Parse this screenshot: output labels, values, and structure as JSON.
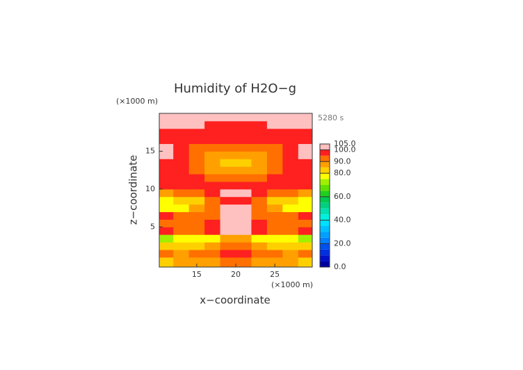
{
  "chart_data": {
    "type": "contour",
    "title": "Humidity of H2O−g",
    "time_label": "5280 s",
    "x_label": "x−coordinate",
    "y_label": "z−coordinate",
    "x_unit": "(×1000 m)",
    "y_unit": "(×1000 m)",
    "xlim": [
      10.2,
      29.8
    ],
    "ylim": [
      -0.3,
      20
    ],
    "xticks": [
      15,
      20,
      25
    ],
    "yticks": [
      5,
      10,
      15
    ],
    "x": [
      11,
      13,
      15,
      17,
      19,
      21,
      23,
      25,
      27,
      29
    ],
    "y": [
      0.5,
      1.5,
      2.5,
      3.5,
      4.5,
      5.5,
      6.5,
      7.5,
      8.5,
      9.5,
      10.5,
      11.5,
      12.5,
      13.5,
      14.5,
      15.5,
      16.5,
      17.5,
      18.5,
      19.5
    ],
    "z": [
      [
        84,
        86,
        85,
        87,
        92,
        92,
        87,
        85,
        86,
        84
      ],
      [
        90,
        88,
        92,
        93,
        96,
        96,
        93,
        92,
        88,
        90
      ],
      [
        82,
        80,
        83,
        85,
        90,
        90,
        85,
        83,
        80,
        82
      ],
      [
        72,
        77,
        78,
        78,
        86,
        86,
        78,
        78,
        77,
        72
      ],
      [
        96,
        92,
        94,
        97,
        101,
        101,
        97,
        94,
        92,
        96
      ],
      [
        91,
        93,
        92,
        96,
        101,
        101,
        96,
        92,
        93,
        91
      ],
      [
        95,
        90,
        92,
        94,
        101,
        101,
        94,
        92,
        90,
        95
      ],
      [
        78,
        79,
        85,
        92,
        101,
        101,
        92,
        85,
        79,
        78
      ],
      [
        77,
        80,
        84,
        93,
        97,
        97,
        93,
        84,
        80,
        77
      ],
      [
        88,
        90,
        92,
        95,
        101,
        101,
        95,
        92,
        90,
        88
      ],
      [
        97,
        98,
        97,
        96,
        97,
        97,
        96,
        97,
        98,
        97
      ],
      [
        98,
        97,
        95,
        92,
        91,
        91,
        92,
        95,
        97,
        98
      ],
      [
        98,
        96,
        92,
        89,
        86,
        86,
        89,
        92,
        96,
        98
      ],
      [
        97,
        95,
        90,
        87,
        84,
        84,
        87,
        90,
        95,
        97
      ],
      [
        101,
        96,
        92,
        89,
        88,
        88,
        89,
        92,
        96,
        101
      ],
      [
        101,
        97,
        94,
        91,
        91,
        91,
        91,
        94,
        97,
        101
      ],
      [
        98,
        98,
        97,
        96,
        96,
        96,
        96,
        97,
        98,
        98
      ],
      [
        98,
        98,
        98,
        98,
        98,
        98,
        98,
        98,
        98,
        98
      ],
      [
        102,
        102,
        101,
        99,
        98,
        98,
        99,
        101,
        102,
        102
      ],
      [
        102,
        102,
        102,
        101,
        101,
        101,
        101,
        102,
        102,
        102
      ]
    ],
    "colorbar": {
      "levels": [
        0,
        5,
        10,
        15,
        20,
        25,
        30,
        35,
        40,
        45,
        50,
        55,
        60,
        65,
        70,
        75,
        80,
        85,
        90,
        95,
        100,
        105
      ],
      "colors": [
        "#0000a0",
        "#0010c8",
        "#0030e0",
        "#0050f0",
        "#0080ff",
        "#00a0ff",
        "#00c0ff",
        "#00e0ff",
        "#00f0e0",
        "#00e0b0",
        "#00d080",
        "#00c850",
        "#20d020",
        "#60e000",
        "#a0f000",
        "#ffff00",
        "#ffd000",
        "#ffa000",
        "#ff7000",
        "#ff2020",
        "#ffc0c0"
      ],
      "ticks": [
        {
          "value": 0,
          "label": "0.0"
        },
        {
          "value": 20,
          "label": "20.0"
        },
        {
          "value": 40,
          "label": "40.0"
        },
        {
          "value": 60,
          "label": "60.0"
        },
        {
          "value": 80,
          "label": "80.0"
        },
        {
          "value": 90,
          "label": "90.0"
        },
        {
          "value": 100,
          "label": "100.0"
        },
        {
          "value": 105,
          "label": "105.0"
        }
      ]
    }
  }
}
